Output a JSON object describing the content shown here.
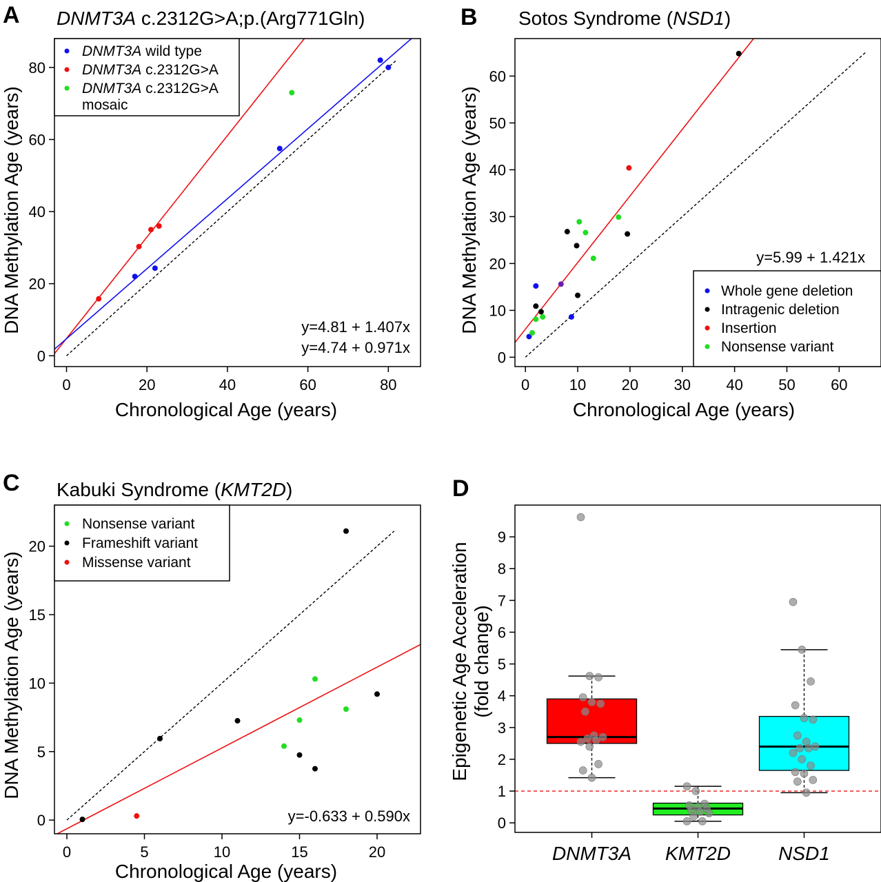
{
  "colors": {
    "blue": "#1010ee",
    "red": "#ee1010",
    "green": "#22dd22",
    "black": "#000000",
    "purple": "#6a1fb0",
    "box_red": "#ff0000",
    "box_green": "#22ee22",
    "box_cyan": "#00ffff",
    "gray_point": "#8c8c8c"
  },
  "chart_data": [
    {
      "panel": "A",
      "type": "scatter",
      "title_italic": "DNMT3A",
      "title_rest": " c.2312G>A;p.(Arg771Gln)",
      "xlabel": "Chronological Age (years)",
      "ylabel": "DNA Methylation Age (years)",
      "xlim": [
        -3,
        88
      ],
      "ylim": [
        -3,
        88
      ],
      "xticks": [
        0,
        20,
        40,
        60,
        80
      ],
      "yticks": [
        0,
        20,
        40,
        60,
        80
      ],
      "legend": [
        {
          "italic": "DNMT3A",
          "text": "  wild type",
          "color": "blue"
        },
        {
          "italic": "DNMT3A",
          "text": " c.2312G>A",
          "color": "red"
        },
        {
          "italic": "DNMT3A",
          "text": " c.2312G>A",
          "text2": "mosaic",
          "color": "green"
        }
      ],
      "series": [
        {
          "name": "wild type",
          "color": "blue",
          "x": [
            17,
            22,
            53,
            78,
            80
          ],
          "y": [
            22,
            24.3,
            57.5,
            82,
            80
          ]
        },
        {
          "name": "c.2312G>A",
          "color": "red",
          "x": [
            8,
            18,
            21,
            23
          ],
          "y": [
            15.8,
            30.3,
            35,
            36
          ]
        },
        {
          "name": "mosaic",
          "color": "green",
          "x": [
            56
          ],
          "y": [
            73
          ]
        }
      ],
      "fits": [
        {
          "intercept": 4.81,
          "slope": 1.407,
          "color": "red",
          "label": "y=4.81 + 1.407x"
        },
        {
          "intercept": 4.74,
          "slope": 0.971,
          "color": "blue",
          "label": "y=4.74 + 0.971x"
        }
      ],
      "identity_line": [
        0,
        82
      ]
    },
    {
      "panel": "B",
      "type": "scatter",
      "title_plain": "Sotos Syndrome (",
      "title_italic": "NSD1",
      "title_close": ")",
      "xlabel": "Chronological Age (years)",
      "ylabel": "DNA Methylation Age (years)",
      "xlim": [
        -2,
        68
      ],
      "ylim": [
        -2,
        68
      ],
      "xticks": [
        0,
        10,
        20,
        30,
        40,
        50,
        60
      ],
      "yticks": [
        0,
        10,
        20,
        30,
        40,
        50,
        60
      ],
      "legend": [
        {
          "text": "Whole gene deletion",
          "color": "blue"
        },
        {
          "text": "Intragenic deletion",
          "color": "black"
        },
        {
          "text": "Insertion",
          "color": "red"
        },
        {
          "text": "Nonsense variant",
          "color": "green"
        }
      ],
      "series": [
        {
          "name": "Whole gene deletion",
          "color": "blue",
          "x": [
            0.7,
            2,
            8.8
          ],
          "y": [
            4.4,
            15.2,
            8.6
          ]
        },
        {
          "name": "Intragenic deletion",
          "color": "black",
          "x": [
            2,
            3,
            8,
            9.8,
            10,
            19.5,
            40.8
          ],
          "y": [
            10.9,
            9.7,
            26.8,
            23.8,
            13.2,
            26.3,
            64.8
          ]
        },
        {
          "name": "Insertion",
          "color": "red",
          "x": [
            19.8
          ],
          "y": [
            40.4
          ]
        },
        {
          "name": "Nonsense variant",
          "color": "green",
          "x": [
            1.3,
            2,
            3.3,
            10.3,
            11.5,
            13,
            17.8
          ],
          "y": [
            5.2,
            8.1,
            8.6,
            28.9,
            26.6,
            21.1,
            29.9
          ]
        },
        {
          "name": "overlap",
          "color": "purple",
          "x": [
            6.8
          ],
          "y": [
            15.6
          ]
        }
      ],
      "fits": [
        {
          "intercept": 5.99,
          "slope": 1.421,
          "color": "red",
          "label": "y=5.99 + 1.421x"
        }
      ],
      "identity_line": [
        0,
        65
      ]
    },
    {
      "panel": "C",
      "type": "scatter",
      "title_plain": "Kabuki Syndrome (",
      "title_italic": "KMT2D",
      "title_close": ")",
      "xlabel": "Chronological Age (years)",
      "ylabel": "DNA Methylation Age (years)",
      "xlim": [
        -0.8,
        22.8
      ],
      "ylim": [
        -1,
        23
      ],
      "xticks": [
        0,
        5,
        10,
        15,
        20
      ],
      "yticks": [
        0,
        5,
        10,
        15,
        20
      ],
      "legend": [
        {
          "text": "Nonsense variant",
          "color": "green"
        },
        {
          "text": "Frameshift variant",
          "color": "black"
        },
        {
          "text": "Missense variant",
          "color": "red"
        }
      ],
      "series": [
        {
          "name": "Nonsense variant",
          "color": "green",
          "x": [
            14,
            15,
            16,
            18
          ],
          "y": [
            5.4,
            7.3,
            10.3,
            8.1
          ]
        },
        {
          "name": "Frameshift variant",
          "color": "black",
          "x": [
            1,
            6,
            11,
            15,
            16,
            18,
            20
          ],
          "y": [
            0.05,
            5.95,
            7.25,
            4.75,
            3.75,
            21.1,
            9.2
          ]
        },
        {
          "name": "Missense variant",
          "color": "red",
          "x": [
            4.5
          ],
          "y": [
            0.3
          ]
        }
      ],
      "fits": [
        {
          "intercept": -0.633,
          "slope": 0.59,
          "color": "red",
          "label": "y=-0.633 + 0.590x"
        }
      ],
      "identity_line": [
        0,
        21.1
      ]
    },
    {
      "panel": "D",
      "type": "box",
      "ylabel_line1": "Epigenetic Age Acceleration",
      "ylabel_line2": "(fold change)",
      "ylim": [
        -0.3,
        10
      ],
      "yticks": [
        0,
        1,
        2,
        3,
        4,
        5,
        6,
        7,
        8,
        9
      ],
      "reference_line": 1,
      "categories": [
        "DNMT3A",
        "KMT2D",
        "NSD1"
      ],
      "boxes": [
        {
          "category": "DNMT3A",
          "color": "box_red",
          "q1": 2.5,
          "median": 2.7,
          "q3": 3.9,
          "whisker_low": 1.42,
          "whisker_high": 4.62,
          "points": [
            9.62,
            4.62,
            4.58,
            3.95,
            3.8,
            3.75,
            3.5,
            2.75,
            2.7,
            2.65,
            2.6,
            2.55,
            2.4,
            1.85,
            1.65,
            1.42
          ]
        },
        {
          "category": "KMT2D",
          "color": "box_green",
          "q1": 0.25,
          "median": 0.45,
          "q3": 0.62,
          "whisker_low": 0.05,
          "whisker_high": 1.15,
          "points": [
            1.15,
            1.0,
            0.6,
            0.55,
            0.5,
            0.45,
            0.4,
            0.35,
            0.3,
            0.2,
            0.05,
            0.05
          ]
        },
        {
          "category": "NSD1",
          "color": "box_cyan",
          "q1": 1.65,
          "median": 2.4,
          "q3": 3.35,
          "whisker_low": 0.95,
          "whisker_high": 5.45,
          "points": [
            6.95,
            5.45,
            4.45,
            3.7,
            3.3,
            3.25,
            2.75,
            2.55,
            2.4,
            2.35,
            2.35,
            2.2,
            2.0,
            1.8,
            1.6,
            1.55,
            1.35,
            1.3,
            0.95
          ]
        }
      ]
    }
  ]
}
